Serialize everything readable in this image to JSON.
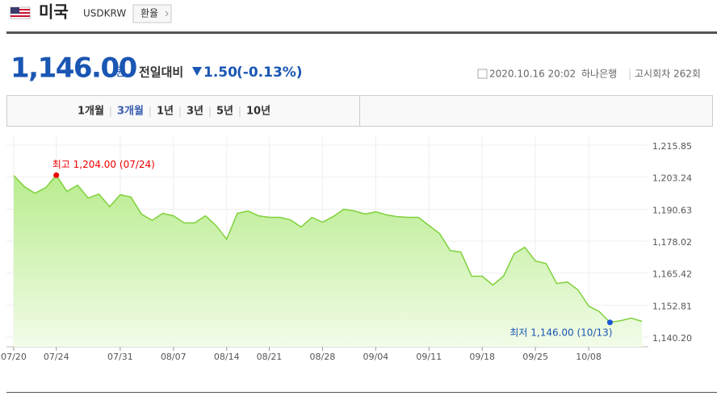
{
  "header": {
    "country": "미국",
    "code": "USDKRW",
    "button": "환율"
  },
  "quote": {
    "price": "1,146.00",
    "unit": "원",
    "change_label": "전일대비",
    "change": "1.50",
    "change_pct": "(-0.13%)",
    "datetime": "2020.10.16 20:02",
    "bank": "하나은행",
    "round": "고시회차 262회"
  },
  "tabs": {
    "items": [
      "1개월",
      "3개월",
      "1년",
      "3년",
      "5년",
      "10년"
    ],
    "active": "3개월"
  },
  "chart_data": {
    "type": "area",
    "categories": [
      "07/20",
      null,
      null,
      null,
      "07/24",
      null,
      null,
      null,
      null,
      null,
      "07/31",
      null,
      null,
      null,
      null,
      "08/07",
      null,
      null,
      null,
      null,
      "08/14",
      null,
      null,
      null,
      "08/21",
      null,
      null,
      null,
      null,
      "08/28",
      null,
      null,
      null,
      null,
      "09/04",
      null,
      null,
      null,
      null,
      "09/11",
      null,
      null,
      null,
      null,
      "09/18",
      null,
      null,
      null,
      null,
      "09/25",
      null,
      null,
      null,
      null,
      "10/08",
      null,
      null,
      null,
      null,
      null
    ],
    "values": [
      1203.9,
      1199.5,
      1196.9,
      1199.1,
      1204.0,
      1197.6,
      1200.1,
      1195.0,
      1196.6,
      1191.6,
      1196.3,
      1195.4,
      1188.7,
      1186.2,
      1189.0,
      1188.0,
      1185.2,
      1185.2,
      1188.0,
      1184.2,
      1178.8,
      1189.0,
      1189.9,
      1188.0,
      1187.4,
      1187.4,
      1186.4,
      1183.6,
      1187.4,
      1185.5,
      1187.7,
      1190.6,
      1189.9,
      1188.7,
      1189.6,
      1188.4,
      1187.7,
      1187.4,
      1187.4,
      1184.2,
      1181.0,
      1174.3,
      1173.7,
      1164.2,
      1164.2,
      1160.7,
      1164.2,
      1173.1,
      1175.6,
      1170.2,
      1169.2,
      1161.3,
      1161.9,
      1158.8,
      1152.4,
      1150.2,
      1146.0,
      1146.7,
      1147.7,
      1146.4
    ],
    "color": "#7fd13b",
    "max_label": "최고 1,204.00 (07/24)",
    "min_label": "최저 1,146.00 (10/13)",
    "ylim": [
      1140.2,
      1215.85
    ],
    "yticks": [
      {
        "value": 1140.2,
        "label": "1,140.20"
      },
      {
        "value": 1152.81,
        "label": "1,152.81"
      },
      {
        "value": 1165.42,
        "label": "1,165.42"
      },
      {
        "value": 1178.02,
        "label": "1,178.02"
      },
      {
        "value": 1190.63,
        "label": "1,190.63"
      },
      {
        "value": 1203.24,
        "label": "1,203.24"
      },
      {
        "value": 1215.85,
        "label": "1,215.85"
      }
    ],
    "grid": true
  }
}
